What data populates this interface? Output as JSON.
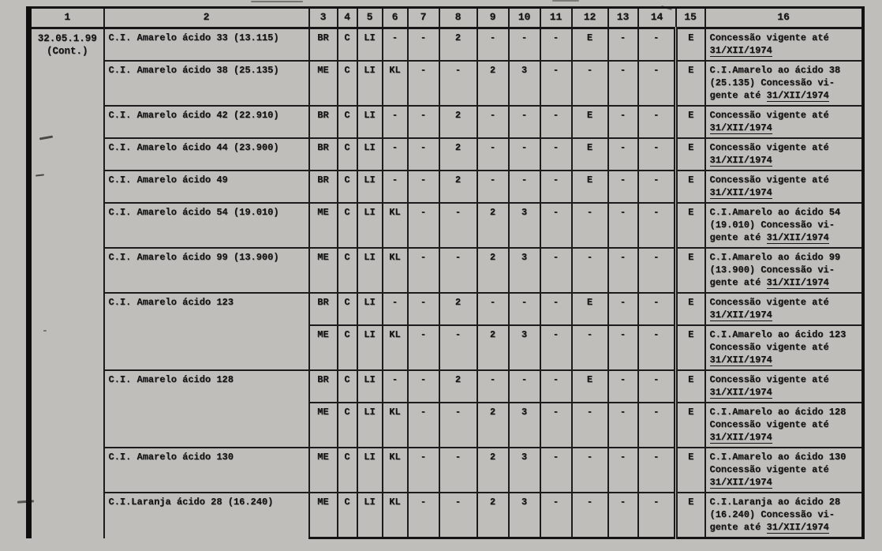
{
  "table": {
    "section_code": {
      "line1": "32.05.1.99",
      "line2": "(Cont.)"
    },
    "headers": [
      "1",
      "2",
      "3",
      "4",
      "5",
      "6",
      "7",
      "8",
      "9",
      "10",
      "11",
      "12",
      "13",
      "14",
      "15",
      "16"
    ],
    "date": "31/XII/1974",
    "rows": [
      {
        "name": "C.I. Amarelo ácido 33 (13.115)",
        "cells": [
          "BR",
          "C",
          "LI",
          "-",
          "-",
          "2",
          "-",
          "-",
          "-",
          "E",
          "-",
          "-",
          "E"
        ],
        "note_lines": [
          "Concessão vigente até",
          "31/XII/1974"
        ]
      },
      {
        "name": "C.I. Amarelo ácido 38 (25.135)",
        "cells": [
          "ME",
          "C",
          "LI",
          "KL",
          "-",
          "-",
          "2",
          "3",
          "-",
          "-",
          "-",
          "-",
          "E"
        ],
        "note_lines": [
          "C.I.Amarelo ao ácido 38",
          "(25.135) Concessão vi-",
          "gente até 31/XII/1974"
        ]
      },
      {
        "name": "C.I. Amarelo ácido 42 (22.910)",
        "cells": [
          "BR",
          "C",
          "LI",
          "-",
          "-",
          "2",
          "-",
          "-",
          "-",
          "E",
          "-",
          "-",
          "E"
        ],
        "note_lines": [
          "Concessão vigente até",
          "31/XII/1974"
        ]
      },
      {
        "name": "C.I. Amarelo ácido 44 (23.900)",
        "cells": [
          "BR",
          "C",
          "LI",
          "-",
          "-",
          "2",
          "-",
          "-",
          "-",
          "E",
          "-",
          "-",
          "E"
        ],
        "note_lines": [
          "Concessão vigente até",
          "31/XII/1974"
        ]
      },
      {
        "name": "C.I. Amarelo ácido 49",
        "cells": [
          "BR",
          "C",
          "LI",
          "-",
          "-",
          "2",
          "-",
          "-",
          "-",
          "E",
          "-",
          "-",
          "E"
        ],
        "note_lines": [
          "Concessão vigente até",
          "31/XII/1974"
        ]
      },
      {
        "name": "C.I. Amarelo ácido 54 (19.010)",
        "cells": [
          "ME",
          "C",
          "LI",
          "KL",
          "-",
          "-",
          "2",
          "3",
          "-",
          "-",
          "-",
          "-",
          "E"
        ],
        "note_lines": [
          "C.I.Amarelo ao ácido 54",
          "(19.010) Concessão vi-",
          "gente até 31/XII/1974"
        ]
      },
      {
        "name": "C.I. Amarelo ácido 99 (13.900)",
        "cells": [
          "ME",
          "C",
          "LI",
          "KL",
          "-",
          "-",
          "2",
          "3",
          "-",
          "-",
          "-",
          "-",
          "E"
        ],
        "note_lines": [
          "C.I.Amarelo ao ácido 99",
          "(13.900) Concessão vi-",
          "gente até 31/XII/1974"
        ]
      },
      {
        "name": "C.I. Amarelo ácido 123",
        "name_rowspan": 2,
        "cells": [
          "BR",
          "C",
          "LI",
          "-",
          "-",
          "2",
          "-",
          "-",
          "-",
          "E",
          "-",
          "-",
          "E"
        ],
        "note_lines": [
          "Concessão vigente até",
          "31/XII/1974"
        ]
      },
      {
        "name": null,
        "cells": [
          "ME",
          "C",
          "LI",
          "KL",
          "-",
          "-",
          "2",
          "3",
          "-",
          "-",
          "-",
          "-",
          "E"
        ],
        "note_lines": [
          "C.I.Amarelo ao ácido 123",
          "Concessão vigente até",
          "31/XII/1974"
        ]
      },
      {
        "name": "C.I. Amarelo ácido 128",
        "name_rowspan": 2,
        "cells": [
          "BR",
          "C",
          "LI",
          "-",
          "-",
          "2",
          "-",
          "-",
          "-",
          "E",
          "-",
          "-",
          "E"
        ],
        "note_lines": [
          "Concessão vigente até",
          "31/XII/1974"
        ]
      },
      {
        "name": null,
        "cells": [
          "ME",
          "C",
          "LI",
          "KL",
          "-",
          "-",
          "2",
          "3",
          "-",
          "-",
          "-",
          "-",
          "E"
        ],
        "note_lines": [
          "C.I.Amarelo ao ácido 128",
          "Concessão vigente até",
          "31/XII/1974"
        ]
      },
      {
        "name": "C.I. Amarelo ácido 130",
        "cells": [
          "ME",
          "C",
          "LI",
          "KL",
          "-",
          "-",
          "2",
          "3",
          "-",
          "-",
          "-",
          "-",
          "E"
        ],
        "note_lines": [
          "C.I.Amarelo ao ácido 130",
          "Concessão vigente até",
          "31/XII/1974"
        ]
      },
      {
        "name": "C.I.Laranja ácido 28 (16.240)",
        "cells": [
          "ME",
          "C",
          "LI",
          "KL",
          "-",
          "-",
          "2",
          "3",
          "-",
          "-",
          "-",
          "-",
          "E"
        ],
        "note_lines": [
          "C.I.Laranja ao ácido 28",
          "(16.240) Concessão vi-",
          "gente até 31/XII/1974"
        ]
      }
    ]
  }
}
